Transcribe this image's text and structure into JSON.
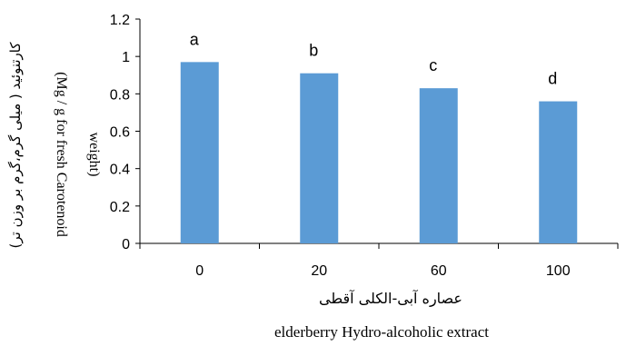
{
  "chart_data": {
    "type": "bar",
    "categories": [
      "0",
      "20",
      "60",
      "100"
    ],
    "values": [
      0.97,
      0.91,
      0.83,
      0.76
    ],
    "data_labels": [
      "a",
      "b",
      "c",
      "d"
    ],
    "ylim": [
      0,
      1.2
    ],
    "yticks": [
      "0",
      "0.2",
      "0.4",
      "0.6",
      "0.8",
      "1",
      "1.2"
    ],
    "xlabel_fa": "عصاره آبی-الکلی آقطی",
    "xlabel_en": "elderberry Hydro-alcoholic extract",
    "ylabel_fa": "کارتنوئید ( میلی گرم،گرم بر وزن تر)",
    "ylabel_en_line1": "(Mg / g for fresh  Carotenoid",
    "ylabel_en_line2": "weight)",
    "bar_color": "#5B9BD5",
    "grid": false,
    "legend": "none"
  }
}
